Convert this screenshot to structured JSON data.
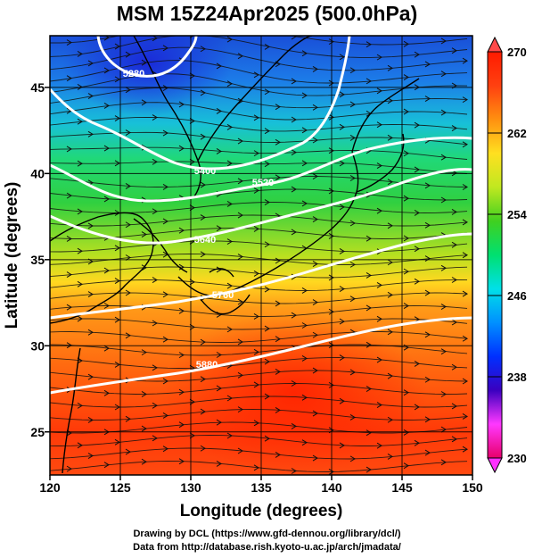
{
  "title": "MSM 15Z24Apr2025 (500.0hPa)",
  "axes": {
    "xlabel": "Longitude (degrees)",
    "ylabel": "Latitude  (degrees)",
    "xlim": [
      120,
      150
    ],
    "ylim": [
      22.5,
      48
    ],
    "xticks": [
      "120",
      "125",
      "130",
      "135",
      "140",
      "145",
      "150"
    ],
    "yticks": [
      "25",
      "30",
      "35",
      "40",
      "45"
    ],
    "grid": true
  },
  "colorbar": {
    "min": 230,
    "max": 270,
    "labels": [
      "270",
      "262",
      "254",
      "246",
      "238",
      "230"
    ],
    "stops": [
      "#e8006a",
      "#ff38ff",
      "#3a00c0",
      "#0030ff",
      "#0090ff",
      "#00e0e8",
      "#00e070",
      "#40d020",
      "#c0e820",
      "#ffe020",
      "#ff9010",
      "#ff4010",
      "#ff1a00"
    ]
  },
  "contours": [
    {
      "label": "5280",
      "level_gpm": 5280
    },
    {
      "label": "5400",
      "level_gpm": 5400
    },
    {
      "label": "5520",
      "level_gpm": 5520
    },
    {
      "label": "5640",
      "level_gpm": 5640
    },
    {
      "label": "5760",
      "level_gpm": 5760
    },
    {
      "label": "5880",
      "level_gpm": 5880
    }
  ],
  "credits": {
    "line1": "Drawing by DCL (https://www.gfd-dennou.org/library/dcl/)",
    "line2": "Data from http://database.rish.kyoto-u.ac.jp/arch/jmadata/"
  }
}
